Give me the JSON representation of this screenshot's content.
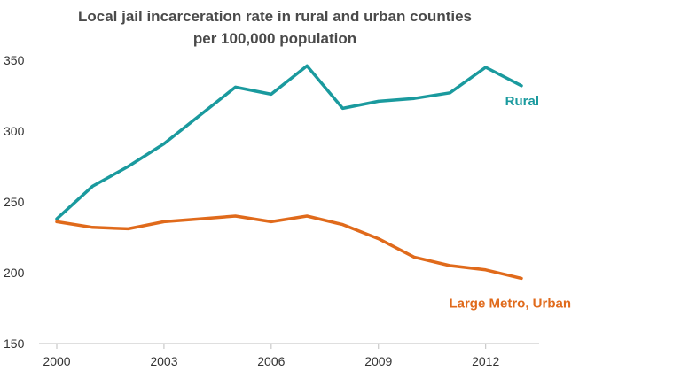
{
  "chart_data": {
    "type": "line",
    "title": [
      "Local jail incarceration rate in rural and urban counties",
      "per 100,000 population"
    ],
    "xlabel": "",
    "ylabel": "",
    "x": [
      2000,
      2001,
      2002,
      2003,
      2004,
      2005,
      2006,
      2007,
      2008,
      2009,
      2010,
      2011,
      2012,
      2013
    ],
    "x_ticks": [
      "2000",
      "2003",
      "2006",
      "2009",
      "2012"
    ],
    "x_tick_values": [
      2000,
      2003,
      2006,
      2009,
      2012
    ],
    "y_ticks": [
      "150",
      "200",
      "250",
      "300",
      "350"
    ],
    "y_tick_values": [
      150,
      200,
      250,
      300,
      350
    ],
    "ylim": [
      150,
      350
    ],
    "xlim": [
      2000,
      2013
    ],
    "grid": false,
    "legend": "direct labels at line ends",
    "series": [
      {
        "name": "Rural",
        "color": "#1a9a9e",
        "values": [
          238,
          261,
          275,
          291,
          311,
          331,
          326,
          346,
          316,
          321,
          323,
          327,
          345,
          332
        ]
      },
      {
        "name": "Large Metro, Urban",
        "color": "#e06a1b",
        "values": [
          236,
          232,
          231,
          236,
          238,
          240,
          236,
          240,
          234,
          224,
          211,
          205,
          202,
          196
        ]
      }
    ]
  }
}
